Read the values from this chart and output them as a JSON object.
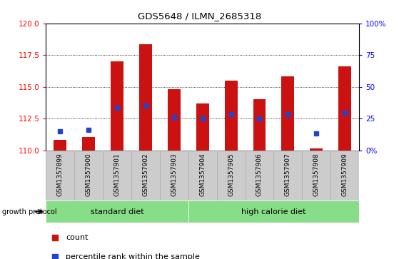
{
  "title": "GDS5648 / ILMN_2685318",
  "samples": [
    "GSM1357899",
    "GSM1357900",
    "GSM1357901",
    "GSM1357902",
    "GSM1357903",
    "GSM1357904",
    "GSM1357905",
    "GSM1357906",
    "GSM1357907",
    "GSM1357908",
    "GSM1357909"
  ],
  "bar_tops": [
    110.8,
    111.05,
    117.0,
    118.35,
    114.8,
    113.7,
    115.5,
    114.0,
    115.8,
    110.15,
    116.6
  ],
  "bar_base": 110.0,
  "blue_vals": [
    111.5,
    111.6,
    113.35,
    113.5,
    112.6,
    112.5,
    112.85,
    112.5,
    112.85,
    111.35,
    112.95
  ],
  "left_ylim": [
    110,
    120
  ],
  "left_yticks": [
    110,
    112.5,
    115,
    117.5,
    120
  ],
  "right_ylim": [
    0,
    100
  ],
  "right_yticks": [
    0,
    25,
    50,
    75,
    100
  ],
  "right_yticklabels": [
    "0%",
    "25",
    "50",
    "75",
    "100%"
  ],
  "bar_color": "#cc1111",
  "blue_color": "#2244cc",
  "blue_size": 4,
  "group_labels": [
    "standard diet",
    "high calorie diet"
  ],
  "group_ranges": [
    [
      0,
      4
    ],
    [
      5,
      10
    ]
  ],
  "group_color": "#88dd88",
  "sample_bg_color": "#cccccc",
  "growth_protocol_label": "growth protocol",
  "dotted_lines": [
    112.5,
    115.0,
    117.5
  ],
  "legend_count_label": "count",
  "legend_pct_label": "percentile rank within the sample"
}
